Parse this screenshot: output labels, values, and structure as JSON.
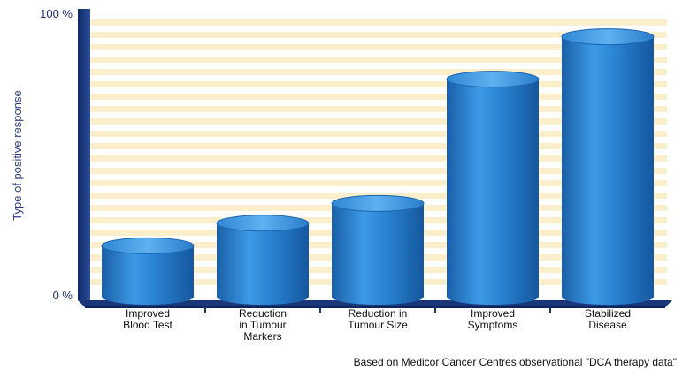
{
  "chart_data": {
    "type": "bar",
    "style": "3d-cylinder",
    "ylabel": "Type of positive response",
    "y_ticks": [
      "0 %",
      "100 %"
    ],
    "ylim": [
      0,
      100
    ],
    "categories": [
      [
        "Improved",
        "Blood Test"
      ],
      [
        "Reduction",
        "in Tumour",
        "Markers"
      ],
      [
        "Reduction in",
        "Tumour Size"
      ],
      [
        "Improved",
        "Symptoms"
      ],
      [
        "Stabilized",
        "Disease"
      ]
    ],
    "values": [
      18,
      26,
      33,
      77,
      92
    ],
    "bar_color": "#1f78c8",
    "background_stripes_color": "#fbeecb"
  },
  "footnote": "Based on Medicor Cancer Centres observational \"DCA therapy data\""
}
